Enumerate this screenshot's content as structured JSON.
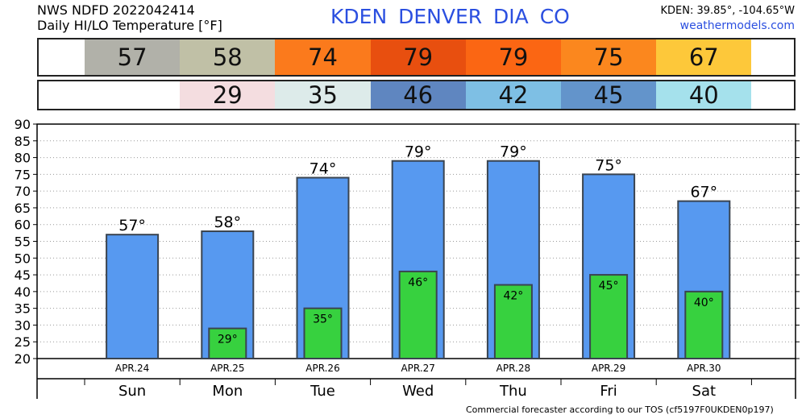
{
  "header": {
    "line1": "NWS NDFD 2022042414",
    "line2": "Daily HI/LO Temperature [°F]",
    "station_title": "KDEN  DENVER DIA    CO",
    "coords": "KDEN: 39.85°, -104.65°W",
    "site": "weathermodels.com"
  },
  "hi_strip": [
    {
      "value": "57",
      "color": "#b1b1a9"
    },
    {
      "value": "58",
      "color": "#c0c0a6"
    },
    {
      "value": "74",
      "color": "#fb7a1c"
    },
    {
      "value": "79",
      "color": "#e84f0f"
    },
    {
      "value": "79",
      "color": "#fb6613"
    },
    {
      "value": "75",
      "color": "#fb871e"
    },
    {
      "value": "67",
      "color": "#fdc83a"
    }
  ],
  "lo_strip": [
    {
      "value": "",
      "color": "#ffffff"
    },
    {
      "value": "29",
      "color": "#f4dde0"
    },
    {
      "value": "35",
      "color": "#ddebea"
    },
    {
      "value": "46",
      "color": "#5f86c0"
    },
    {
      "value": "42",
      "color": "#7ebfe4"
    },
    {
      "value": "45",
      "color": "#6394cb"
    },
    {
      "value": "40",
      "color": "#a5e1ec"
    }
  ],
  "colors": {
    "hi_bar": "#5799f0",
    "lo_bar": "#37d13f",
    "bar_edge": "#3a4450"
  },
  "chart_data": {
    "type": "bar",
    "categories": [
      "Sun",
      "Mon",
      "Tue",
      "Wed",
      "Thu",
      "Fri",
      "Sat"
    ],
    "dates": [
      "APR.24",
      "APR.25",
      "APR.26",
      "APR.27",
      "APR.28",
      "APR.29",
      "APR.30"
    ],
    "series": [
      {
        "values": [
          57,
          58,
          74,
          79,
          79,
          75,
          67
        ],
        "labels": [
          "57°",
          "58°",
          "74°",
          "79°",
          "79°",
          "75°",
          "67°"
        ]
      },
      {
        "values": [
          null,
          29,
          35,
          46,
          42,
          45,
          40
        ],
        "labels": [
          "",
          "29°",
          "35°",
          "46°",
          "42°",
          "45°",
          "40°"
        ]
      }
    ],
    "ylim": [
      20,
      90
    ],
    "yticks": [
      20,
      25,
      30,
      35,
      40,
      45,
      50,
      55,
      60,
      65,
      70,
      75,
      80,
      85,
      90
    ],
    "grid": true
  },
  "footer": "Commercial forecaster according to our TOS (cf5197F0UKDEN0p197)"
}
